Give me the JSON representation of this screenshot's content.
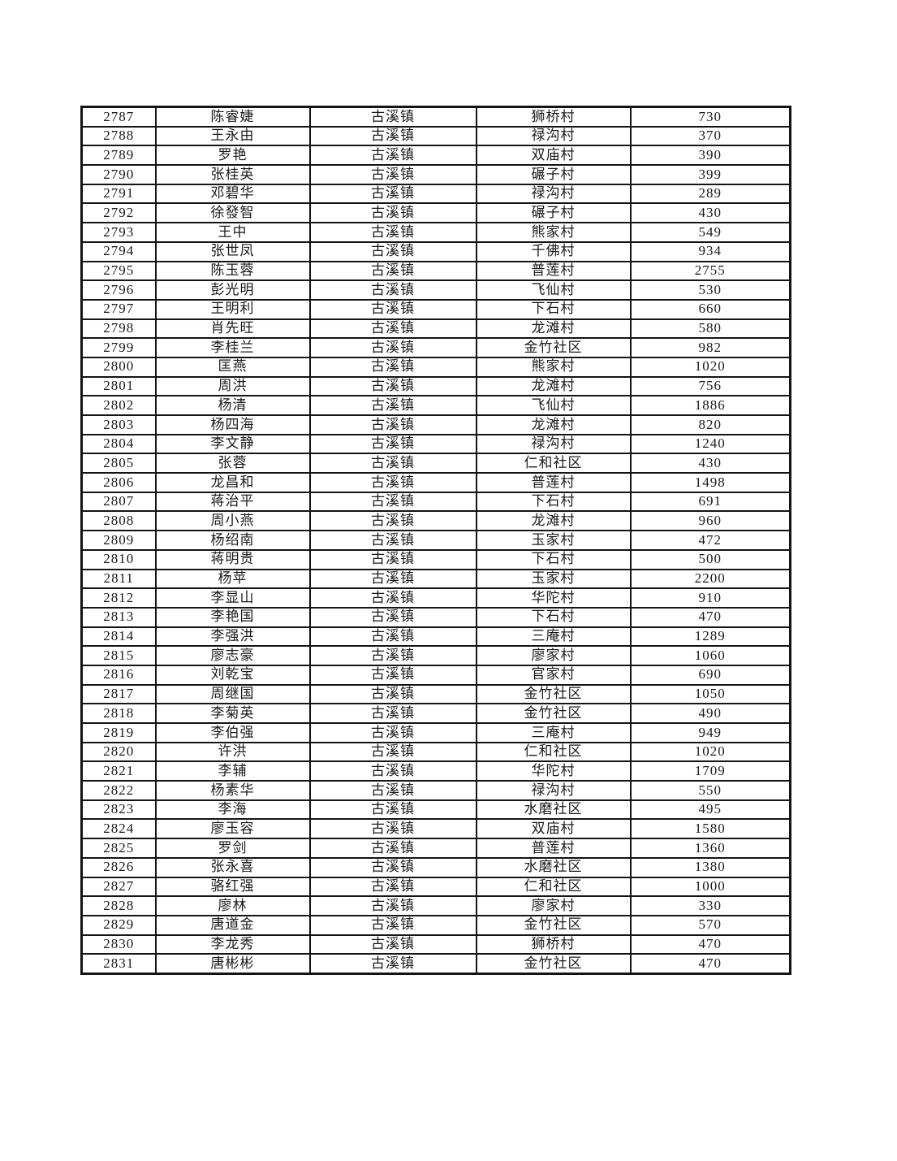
{
  "page": {
    "background_color": "#ffffff",
    "text_color": "#1a1a1a",
    "border_color": "#141414"
  },
  "table": {
    "rows": [
      {
        "serial": "2787",
        "name": "陈睿婕",
        "town": "古溪镇",
        "village": "狮桥村",
        "amount": "730"
      },
      {
        "serial": "2788",
        "name": "王永由",
        "town": "古溪镇",
        "village": "禄沟村",
        "amount": "370"
      },
      {
        "serial": "2789",
        "name": "罗艳",
        "town": "古溪镇",
        "village": "双庙村",
        "amount": "390"
      },
      {
        "serial": "2790",
        "name": "张桂英",
        "town": "古溪镇",
        "village": "碾子村",
        "amount": "399"
      },
      {
        "serial": "2791",
        "name": "邓碧华",
        "town": "古溪镇",
        "village": "禄沟村",
        "amount": "289"
      },
      {
        "serial": "2792",
        "name": "徐發智",
        "town": "古溪镇",
        "village": "碾子村",
        "amount": "430"
      },
      {
        "serial": "2793",
        "name": "王中",
        "town": "古溪镇",
        "village": "熊家村",
        "amount": "549"
      },
      {
        "serial": "2794",
        "name": "张世凤",
        "town": "古溪镇",
        "village": "千佛村",
        "amount": "934"
      },
      {
        "serial": "2795",
        "name": "陈玉蓉",
        "town": "古溪镇",
        "village": "普莲村",
        "amount": "2755"
      },
      {
        "serial": "2796",
        "name": "彭光明",
        "town": "古溪镇",
        "village": "飞仙村",
        "amount": "530"
      },
      {
        "serial": "2797",
        "name": "王明利",
        "town": "古溪镇",
        "village": "下石村",
        "amount": "660"
      },
      {
        "serial": "2798",
        "name": "肖先旺",
        "town": "古溪镇",
        "village": "龙滩村",
        "amount": "580"
      },
      {
        "serial": "2799",
        "name": "李桂兰",
        "town": "古溪镇",
        "village": "金竹社区",
        "amount": "982"
      },
      {
        "serial": "2800",
        "name": "匡燕",
        "town": "古溪镇",
        "village": "熊家村",
        "amount": "1020"
      },
      {
        "serial": "2801",
        "name": "周洪",
        "town": "古溪镇",
        "village": "龙滩村",
        "amount": "756"
      },
      {
        "serial": "2802",
        "name": "杨清",
        "town": "古溪镇",
        "village": "飞仙村",
        "amount": "1886"
      },
      {
        "serial": "2803",
        "name": "杨四海",
        "town": "古溪镇",
        "village": "龙滩村",
        "amount": "820"
      },
      {
        "serial": "2804",
        "name": "李文静",
        "town": "古溪镇",
        "village": "禄沟村",
        "amount": "1240"
      },
      {
        "serial": "2805",
        "name": "张蓉",
        "town": "古溪镇",
        "village": "仁和社区",
        "amount": "430"
      },
      {
        "serial": "2806",
        "name": "龙昌和",
        "town": "古溪镇",
        "village": "普莲村",
        "amount": "1498"
      },
      {
        "serial": "2807",
        "name": "蒋治平",
        "town": "古溪镇",
        "village": "下石村",
        "amount": "691"
      },
      {
        "serial": "2808",
        "name": "周小燕",
        "town": "古溪镇",
        "village": "龙滩村",
        "amount": "960"
      },
      {
        "serial": "2809",
        "name": "杨绍南",
        "town": "古溪镇",
        "village": "玉家村",
        "amount": "472"
      },
      {
        "serial": "2810",
        "name": "蒋明贵",
        "town": "古溪镇",
        "village": "下石村",
        "amount": "500"
      },
      {
        "serial": "2811",
        "name": "杨苹",
        "town": "古溪镇",
        "village": "玉家村",
        "amount": "2200"
      },
      {
        "serial": "2812",
        "name": "李显山",
        "town": "古溪镇",
        "village": "华陀村",
        "amount": "910"
      },
      {
        "serial": "2813",
        "name": "李艳国",
        "town": "古溪镇",
        "village": "下石村",
        "amount": "470"
      },
      {
        "serial": "2814",
        "name": "李强洪",
        "town": "古溪镇",
        "village": "三庵村",
        "amount": "1289"
      },
      {
        "serial": "2815",
        "name": "廖志豪",
        "town": "古溪镇",
        "village": "廖家村",
        "amount": "1060"
      },
      {
        "serial": "2816",
        "name": "刘乾宝",
        "town": "古溪镇",
        "village": "官家村",
        "amount": "690"
      },
      {
        "serial": "2817",
        "name": "周继国",
        "town": "古溪镇",
        "village": "金竹社区",
        "amount": "1050"
      },
      {
        "serial": "2818",
        "name": "李菊英",
        "town": "古溪镇",
        "village": "金竹社区",
        "amount": "490"
      },
      {
        "serial": "2819",
        "name": "李伯强",
        "town": "古溪镇",
        "village": "三庵村",
        "amount": "949"
      },
      {
        "serial": "2820",
        "name": "许洪",
        "town": "古溪镇",
        "village": "仁和社区",
        "amount": "1020"
      },
      {
        "serial": "2821",
        "name": "李辅",
        "town": "古溪镇",
        "village": "华陀村",
        "amount": "1709"
      },
      {
        "serial": "2822",
        "name": "杨素华",
        "town": "古溪镇",
        "village": "禄沟村",
        "amount": "550"
      },
      {
        "serial": "2823",
        "name": "李海",
        "town": "古溪镇",
        "village": "水磨社区",
        "amount": "495"
      },
      {
        "serial": "2824",
        "name": "廖玉容",
        "town": "古溪镇",
        "village": "双庙村",
        "amount": "1580"
      },
      {
        "serial": "2825",
        "name": "罗剑",
        "town": "古溪镇",
        "village": "普莲村",
        "amount": "1360"
      },
      {
        "serial": "2826",
        "name": "张永喜",
        "town": "古溪镇",
        "village": "水磨社区",
        "amount": "1380"
      },
      {
        "serial": "2827",
        "name": "骆红强",
        "town": "古溪镇",
        "village": "仁和社区",
        "amount": "1000"
      },
      {
        "serial": "2828",
        "name": "廖林",
        "town": "古溪镇",
        "village": "廖家村",
        "amount": "330"
      },
      {
        "serial": "2829",
        "name": "唐道金",
        "town": "古溪镇",
        "village": "金竹社区",
        "amount": "570"
      },
      {
        "serial": "2830",
        "name": "李龙秀",
        "town": "古溪镇",
        "village": "狮桥村",
        "amount": "470"
      },
      {
        "serial": "2831",
        "name": "唐彬彬",
        "town": "古溪镇",
        "village": "金竹社区",
        "amount": "470"
      }
    ]
  }
}
